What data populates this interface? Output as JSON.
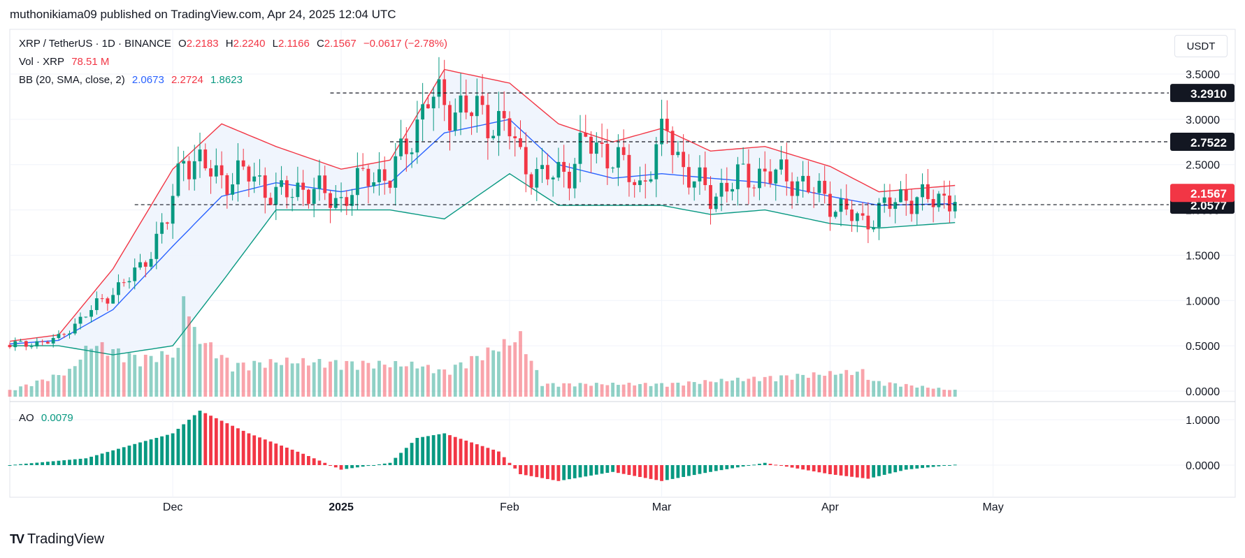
{
  "header": {
    "published": "muthonikiama09 published on TradingView.com, Apr 24, 2025 12:04 UTC"
  },
  "legend": {
    "symbol": "XRP / TetherUS · 1D · BINANCE",
    "o_label": "O",
    "o": "2.2183",
    "h_label": "H",
    "h": "2.2240",
    "l_label": "L",
    "l": "2.1166",
    "c_label": "C",
    "c": "2.1567",
    "change": "−0.0617 (−2.78%)",
    "vol_label": "Vol · XRP",
    "vol": "78.51 M",
    "bb_label": "BB (20, SMA, close, 2)",
    "bb_basis": "2.0673",
    "bb_upper": "2.2724",
    "bb_lower": "1.8623",
    "ao_label": "AO",
    "ao": "0.0079"
  },
  "unit_button": "USDT",
  "footer": {
    "brand": "TradingView",
    "logo_text": "TV"
  },
  "colors": {
    "up": "#089981",
    "down": "#f23645",
    "basis": "#2962ff",
    "upper": "#f23645",
    "lower": "#089981",
    "fill": "#eef4fd"
  },
  "chart_data": [
    {
      "type": "candlestick",
      "series_name": "XRP / TetherUS",
      "x_range": [
        "2024-11-01",
        "2025-05-08"
      ],
      "x_ticks": [
        {
          "date": "2024-12-01",
          "label": "Dec"
        },
        {
          "date": "2025-01-01",
          "label": "2025"
        },
        {
          "date": "2025-02-01",
          "label": "Feb"
        },
        {
          "date": "2025-03-01",
          "label": "Mar"
        },
        {
          "date": "2025-04-01",
          "label": "Apr"
        },
        {
          "date": "2025-05-01",
          "label": "May"
        }
      ],
      "y_ticks": [
        "3.5000",
        "3.0000",
        "2.5000",
        "2.0000",
        "1.5000",
        "1.0000",
        "0.5000",
        "0.0000"
      ],
      "ylim": [
        -0.05,
        3.72
      ],
      "levels": [
        {
          "value": 3.291,
          "label": "3.2910",
          "from": "2024-12-30"
        },
        {
          "value": 2.7522,
          "label": "2.7522",
          "from": "2025-01-10"
        },
        {
          "value": 2.0577,
          "label": "2.0577",
          "from": "2024-11-24"
        }
      ],
      "price_tag": {
        "value": 2.1567,
        "label": "2.1567"
      },
      "bb_key_dates": [
        "2024-11-01",
        "2024-11-10",
        "2024-11-20",
        "2024-12-01",
        "2024-12-10",
        "2024-12-20",
        "2025-01-01",
        "2025-01-10",
        "2025-01-20",
        "2025-02-01",
        "2025-02-10",
        "2025-02-20",
        "2025-03-01",
        "2025-03-10",
        "2025-03-20",
        "2025-04-01",
        "2025-04-10",
        "2025-04-24"
      ],
      "bb_upper": [
        0.55,
        0.62,
        1.35,
        2.45,
        2.95,
        2.7,
        2.45,
        2.55,
        3.55,
        3.4,
        2.95,
        2.75,
        2.9,
        2.65,
        2.7,
        2.48,
        2.2,
        2.27
      ],
      "bb_basis": [
        0.52,
        0.56,
        0.9,
        1.6,
        2.15,
        2.3,
        2.2,
        2.3,
        2.85,
        3.0,
        2.5,
        2.35,
        2.4,
        2.35,
        2.3,
        2.15,
        2.05,
        2.07
      ],
      "bb_lower": [
        0.5,
        0.5,
        0.4,
        0.5,
        1.2,
        2.0,
        2.0,
        2.0,
        1.9,
        2.4,
        2.05,
        2.05,
        2.05,
        1.95,
        2.0,
        1.85,
        1.8,
        1.86
      ],
      "close_key_dates": [
        "2024-11-01",
        "2024-11-05",
        "2024-11-10",
        "2024-11-15",
        "2024-11-20",
        "2024-11-25",
        "2024-11-30",
        "2024-12-03",
        "2024-12-06",
        "2024-12-10",
        "2024-12-15",
        "2024-12-20",
        "2024-12-25",
        "2025-01-01",
        "2025-01-06",
        "2025-01-10",
        "2025-01-15",
        "2025-01-17",
        "2025-01-20",
        "2025-01-25",
        "2025-02-01",
        "2025-02-03",
        "2025-02-07",
        "2025-02-12",
        "2025-02-15",
        "2025-02-20",
        "2025-02-25",
        "2025-03-02",
        "2025-03-05",
        "2025-03-10",
        "2025-03-15",
        "2025-03-20",
        "2025-03-25",
        "2025-04-01",
        "2025-04-07",
        "2025-04-10",
        "2025-04-15",
        "2025-04-20",
        "2025-04-24"
      ],
      "close_key_values": [
        0.51,
        0.52,
        0.58,
        0.85,
        1.1,
        1.35,
        1.9,
        2.6,
        2.5,
        2.35,
        2.4,
        2.15,
        2.25,
        2.1,
        2.4,
        2.35,
        2.95,
        3.25,
        3.15,
        3.1,
        2.9,
        2.55,
        2.35,
        2.45,
        2.75,
        2.6,
        2.25,
        2.9,
        2.45,
        2.15,
        2.35,
        2.4,
        2.35,
        2.1,
        1.85,
        2.0,
        2.15,
        2.1,
        2.16
      ],
      "volume_key_dates": [
        "2024-11-01",
        "2024-11-12",
        "2024-11-16",
        "2024-11-25",
        "2024-12-02",
        "2024-12-03",
        "2024-12-05",
        "2024-12-12",
        "2024-12-22",
        "2025-01-15",
        "2025-01-20",
        "2025-02-03",
        "2025-02-07",
        "2025-03-02",
        "2025-04-07",
        "2025-04-09",
        "2025-04-24"
      ],
      "volume_key_values": [
        0.05,
        0.2,
        0.42,
        0.3,
        0.35,
        0.84,
        0.5,
        0.25,
        0.28,
        0.25,
        0.2,
        0.47,
        0.1,
        0.1,
        0.2,
        0.12,
        0.05
      ]
    },
    {
      "type": "histogram",
      "series_name": "AO",
      "y_ticks": [
        "1.0000",
        "0.0000"
      ],
      "ylim": [
        -0.5,
        1.25
      ],
      "key_dates": [
        "2024-11-01",
        "2024-11-15",
        "2024-11-25",
        "2024-12-01",
        "2024-12-06",
        "2024-12-15",
        "2024-12-25",
        "2025-01-01",
        "2025-01-10",
        "2025-01-15",
        "2025-01-20",
        "2025-01-30",
        "2025-02-03",
        "2025-02-10",
        "2025-02-20",
        "2025-03-01",
        "2025-03-10",
        "2025-03-20",
        "2025-04-01",
        "2025-04-08",
        "2025-04-15",
        "2025-04-24"
      ],
      "key_values": [
        0.0,
        0.15,
        0.5,
        0.7,
        1.2,
        0.7,
        0.25,
        -0.1,
        0.05,
        0.6,
        0.7,
        0.3,
        -0.2,
        -0.35,
        -0.15,
        -0.35,
        -0.15,
        0.05,
        -0.2,
        -0.3,
        -0.1,
        0.01
      ]
    }
  ]
}
